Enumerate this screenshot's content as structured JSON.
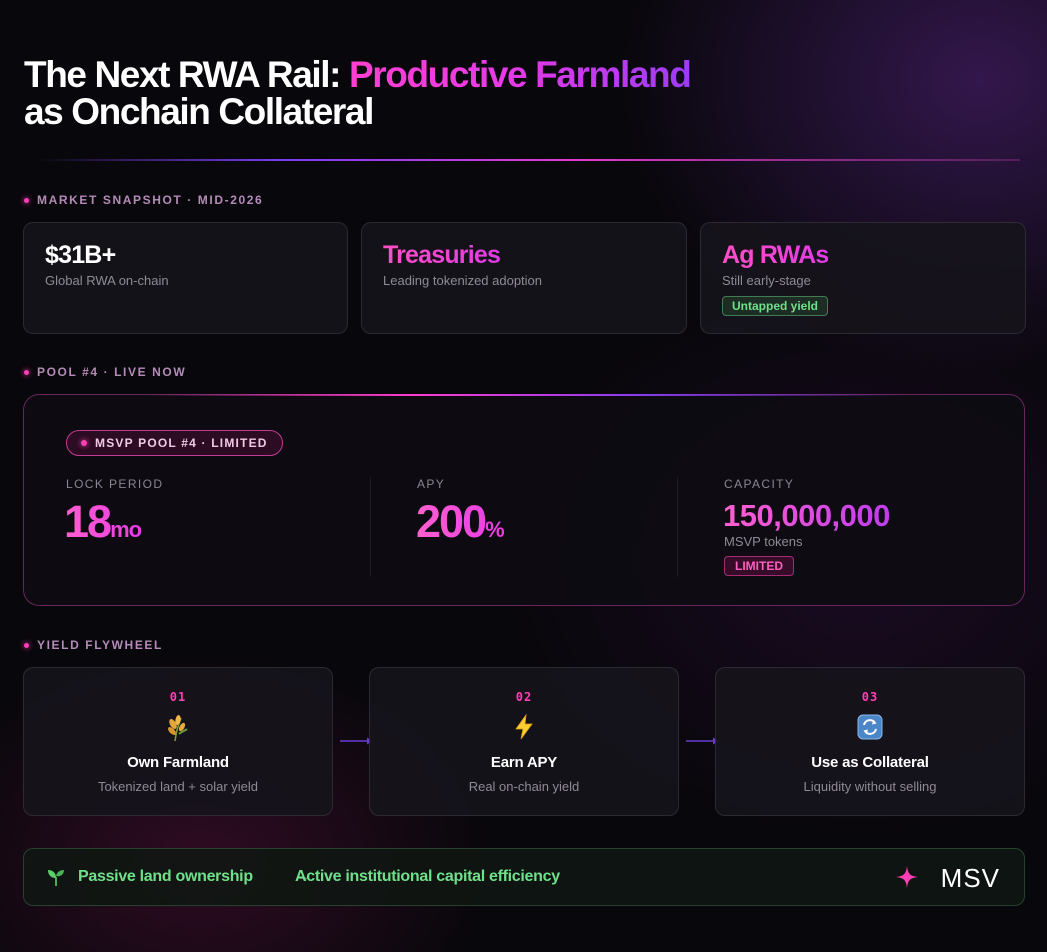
{
  "header": {
    "title_plain": "The Next RWA Rail: ",
    "title_highlight": "Productive Farmland",
    "title_line2": "as Onchain Collateral"
  },
  "market_snapshot": {
    "label": "MARKET SNAPSHOT · MID-2026",
    "cards": [
      {
        "value": "$31B+",
        "subtitle": "Global RWA on-chain"
      },
      {
        "value": "Treasuries",
        "subtitle": "Leading tokenized adoption"
      },
      {
        "value": "Ag RWAs",
        "subtitle": "Still early-stage",
        "badge": "Untapped yield"
      }
    ]
  },
  "pool": {
    "label": "POOL #4 · LIVE NOW",
    "pill": "MSVP POOL #4 · LIMITED",
    "lock_period": {
      "label": "LOCK PERIOD",
      "value": "18",
      "unit": "mo"
    },
    "apy": {
      "label": "APY",
      "value": "200",
      "unit": "%"
    },
    "capacity": {
      "label": "CAPACITY",
      "value": "150,000,000",
      "subtitle": "MSVP tokens",
      "badge": "LIMITED"
    }
  },
  "flywheel": {
    "label": "YIELD FLYWHEEL",
    "steps": [
      {
        "num": "01",
        "icon": "wheat-icon",
        "title": "Own Farmland",
        "subtitle": "Tokenized land + solar yield"
      },
      {
        "num": "02",
        "icon": "lightning-icon",
        "title": "Earn APY",
        "subtitle": "Real on-chain yield"
      },
      {
        "num": "03",
        "icon": "cycle-arrows-icon",
        "title": "Use as Collateral",
        "subtitle": "Liquidity without selling"
      }
    ]
  },
  "footer": {
    "left_text": "Passive land ownership",
    "arrow": "→",
    "right_text": "Active institutional capital efficiency",
    "logo": "MSV"
  },
  "colors": {
    "accent_pink": "#ff3fb5",
    "accent_purple": "#8a3cf0",
    "accent_green": "#6fe08a",
    "background": "#08070b"
  }
}
